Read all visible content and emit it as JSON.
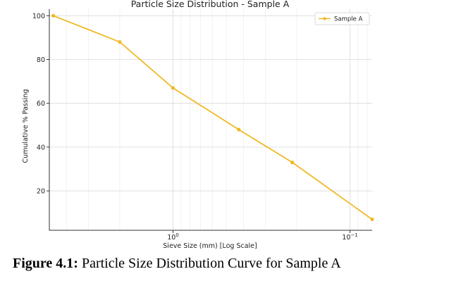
{
  "chart_data": {
    "type": "line",
    "title": "Particle Size Distribution - Sample A",
    "xlabel": "Sieve Size (mm) [Log Scale]",
    "ylabel": "Cumulative % Passing",
    "x_scale": "log",
    "x_axis_inverted": true,
    "xlim": [
      5.0,
      0.075
    ],
    "ylim": [
      2,
      103
    ],
    "grid": true,
    "legend_position": "top-right",
    "x_ticks": [
      {
        "value": 1.0,
        "base": "10",
        "exp": "0"
      },
      {
        "value": 0.1,
        "base": "10",
        "exp": "−1"
      }
    ],
    "y_ticks": [
      100,
      80,
      60,
      40,
      20
    ],
    "series": [
      {
        "name": "Sample A",
        "color": "#EFB925",
        "x": [
          4.75,
          2.0,
          1.0,
          0.425,
          0.212,
          0.075
        ],
        "y": [
          100,
          88,
          67,
          48,
          33,
          7
        ]
      }
    ]
  },
  "caption": {
    "prefix": "Figure 4.1:",
    "text": " Particle Size Distribution Curve for Sample A"
  }
}
